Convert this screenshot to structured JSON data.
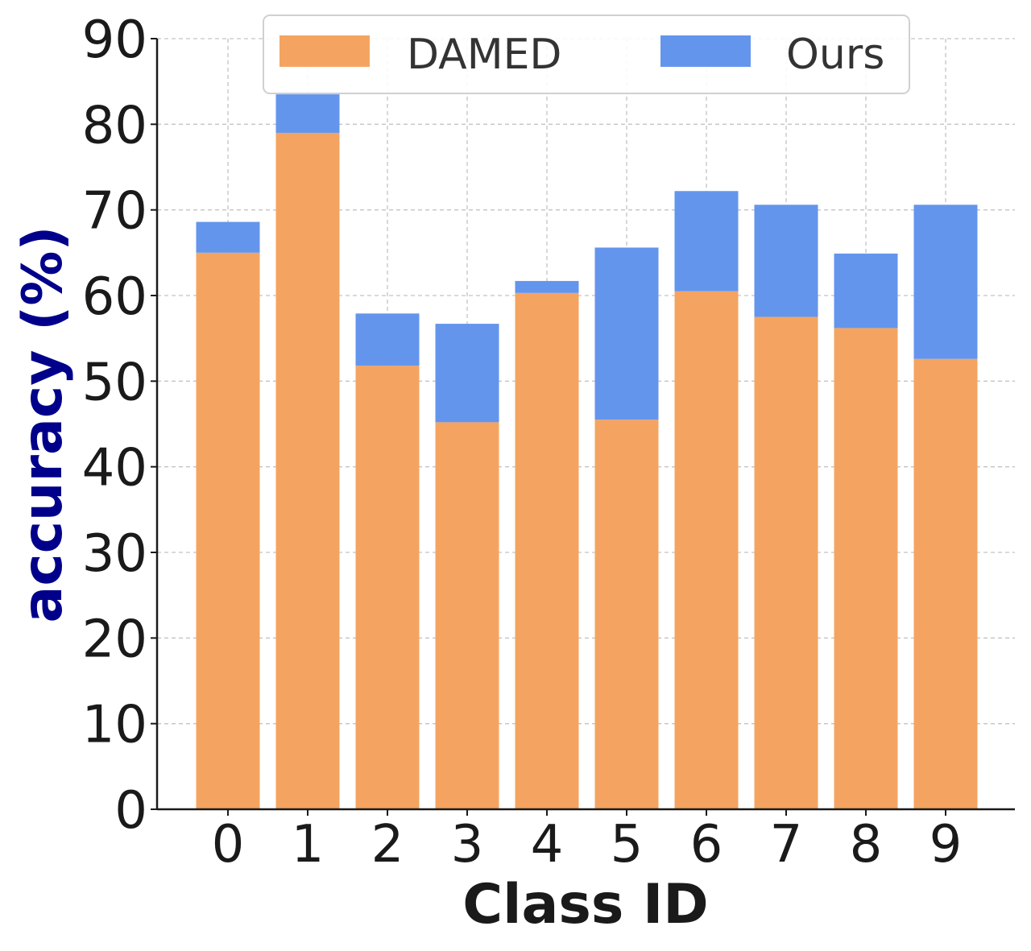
{
  "chart_data": {
    "type": "bar",
    "categories": [
      "0",
      "1",
      "2",
      "3",
      "4",
      "5",
      "6",
      "7",
      "8",
      "9"
    ],
    "series": [
      {
        "name": "DAMED",
        "color": "#F4A460",
        "values": [
          65.0,
          79.0,
          51.8,
          45.2,
          60.3,
          45.5,
          60.5,
          57.5,
          56.2,
          52.6
        ]
      },
      {
        "name": "Ours",
        "color": "#6495ED",
        "values": [
          68.6,
          83.5,
          57.9,
          56.7,
          61.7,
          65.6,
          72.2,
          70.6,
          64.9,
          70.6
        ]
      }
    ],
    "overlap_color": "#FFDEAD",
    "xlabel": "Class ID",
    "ylabel": "accuracy (%)",
    "ylabel_color": "#00008B",
    "ylim": [
      0,
      90
    ],
    "yticks": [
      0,
      10,
      20,
      30,
      40,
      50,
      60,
      70,
      80,
      90
    ],
    "legend_position": "top-center",
    "grid": true
  }
}
